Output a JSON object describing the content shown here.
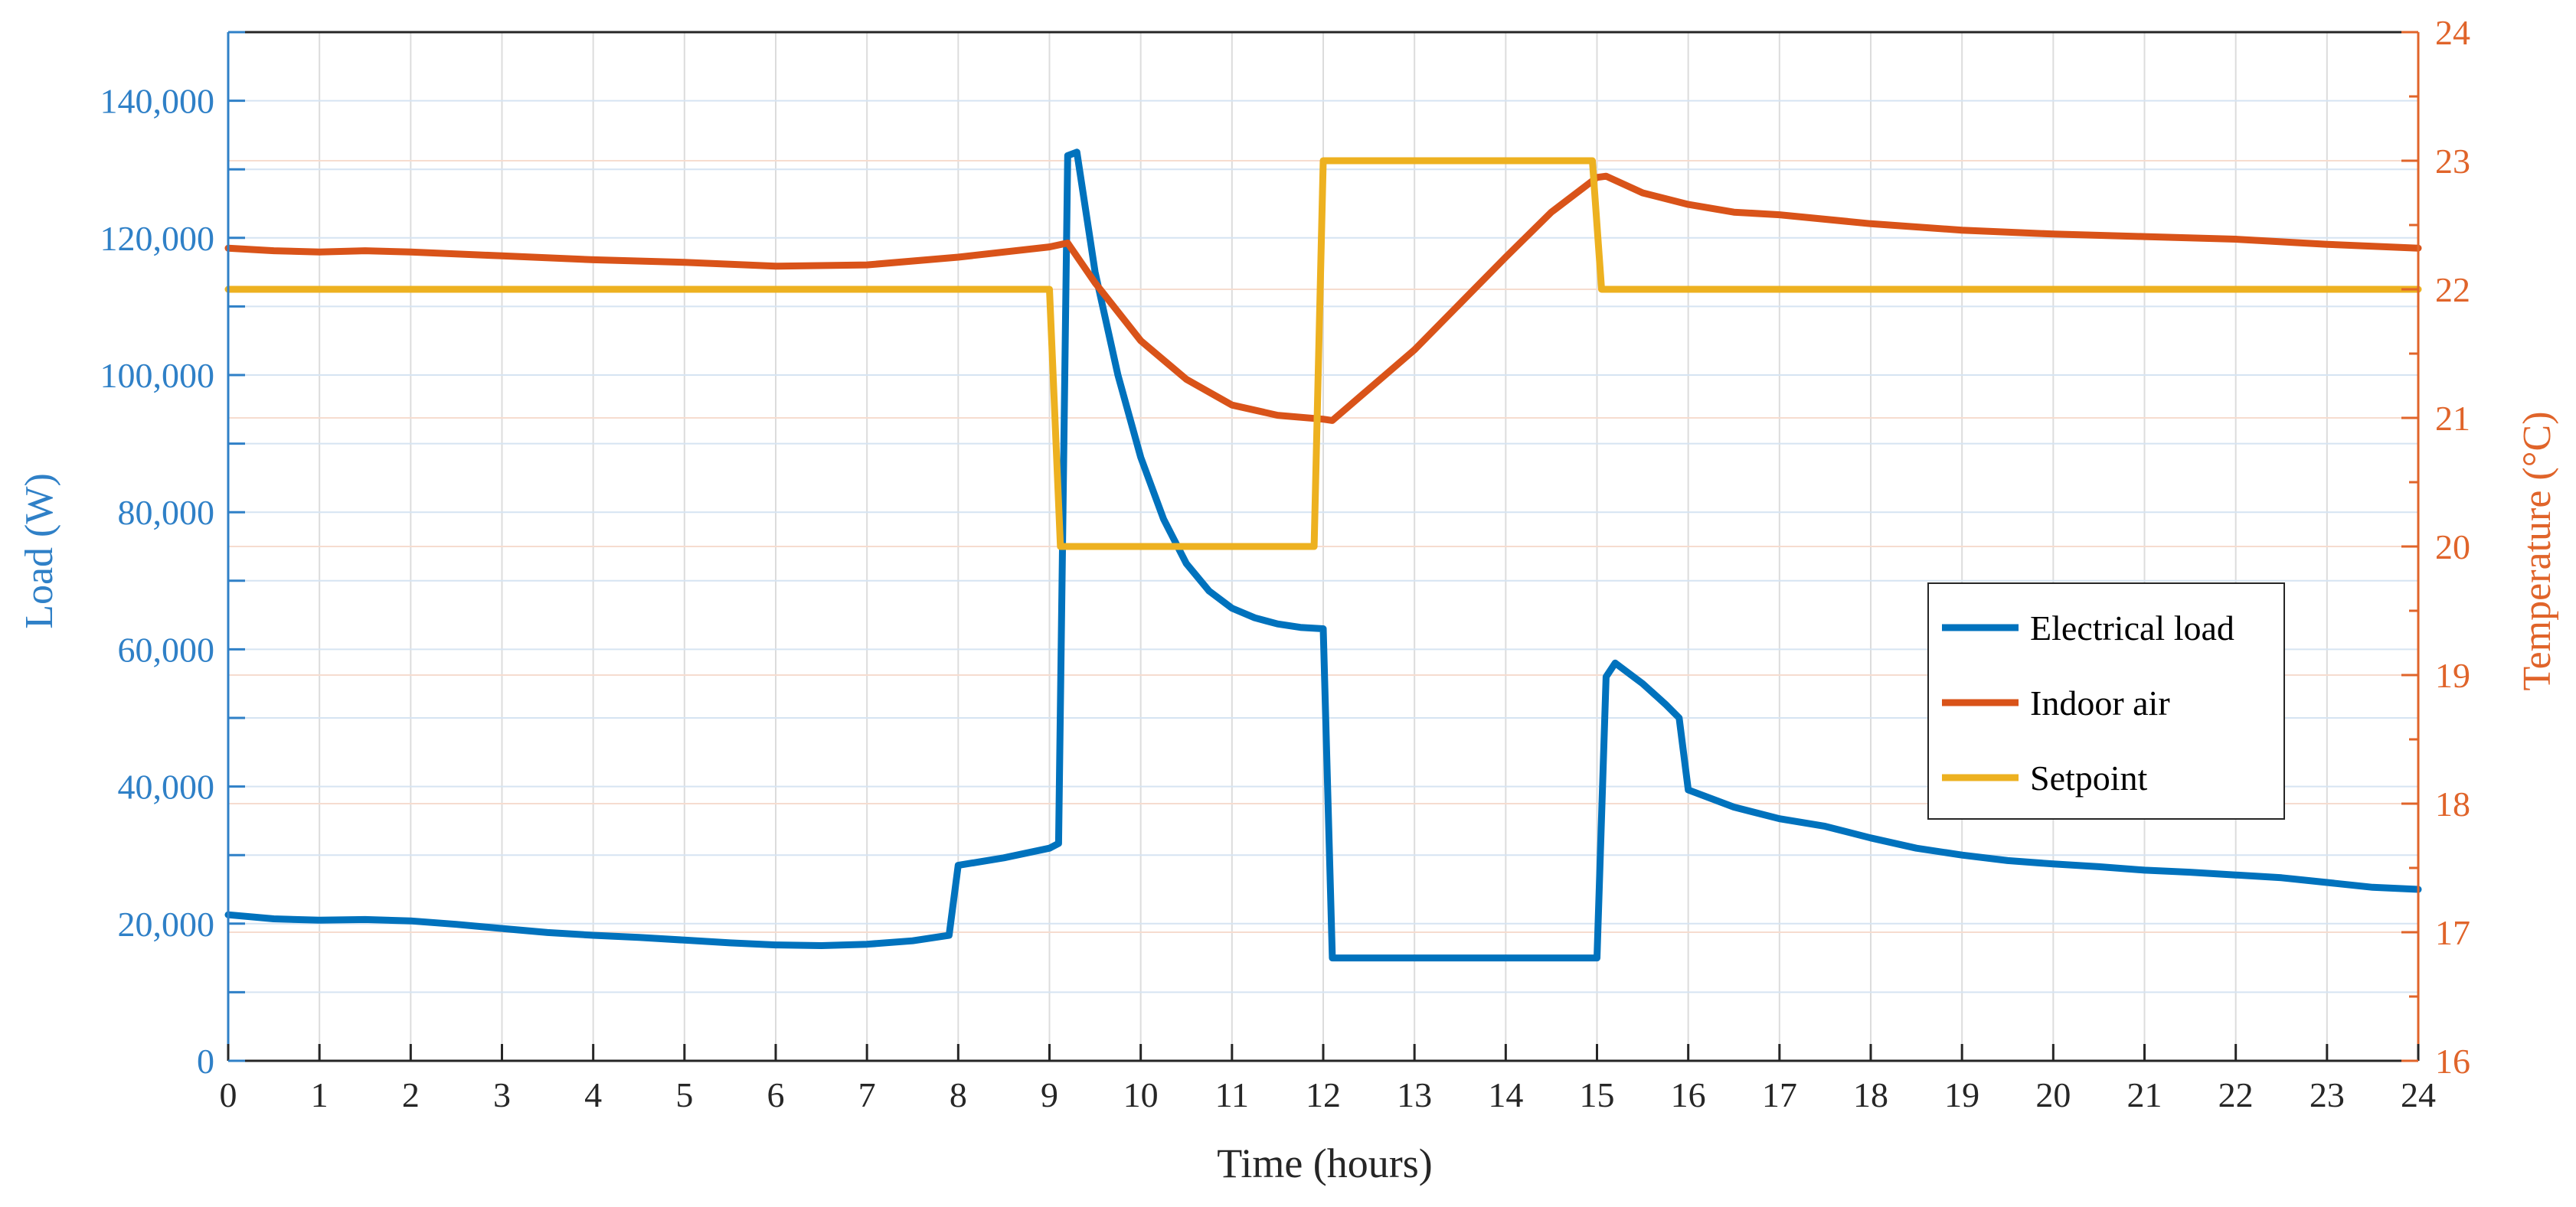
{
  "chart_data": {
    "type": "line",
    "xlabel": "Time (hours)",
    "ylabel_left": "Load (W)",
    "ylabel_right": "Temperature (°C)",
    "xlim": [
      0,
      24
    ],
    "ylim_left": [
      0,
      150000
    ],
    "ylim_right": [
      16,
      24
    ],
    "grid": true,
    "legend_position": "right-middle",
    "x_ticks": [
      "0",
      "1",
      "2",
      "3",
      "4",
      "5",
      "6",
      "7",
      "8",
      "9",
      "10",
      "11",
      "12",
      "13",
      "14",
      "15",
      "16",
      "17",
      "18",
      "19",
      "20",
      "21",
      "22",
      "23",
      "24"
    ],
    "y_left_ticks": [
      "0",
      "20,000",
      "40,000",
      "60,000",
      "80,000",
      "100,000",
      "120,000",
      "140,000"
    ],
    "y_right_ticks": [
      "16",
      "17",
      "18",
      "19",
      "20",
      "21",
      "22",
      "23",
      "24"
    ],
    "series": [
      {
        "name": "Electrical load",
        "axis": "left",
        "color": "#0072bd",
        "points": [
          [
            0,
            21300
          ],
          [
            0.5,
            20700
          ],
          [
            1,
            20500
          ],
          [
            1.5,
            20600
          ],
          [
            2,
            20400
          ],
          [
            2.5,
            19900
          ],
          [
            3,
            19300
          ],
          [
            3.5,
            18700
          ],
          [
            4,
            18300
          ],
          [
            4.5,
            18000
          ],
          [
            5,
            17600
          ],
          [
            5.5,
            17200
          ],
          [
            6,
            16900
          ],
          [
            6.5,
            16800
          ],
          [
            7,
            17000
          ],
          [
            7.5,
            17500
          ],
          [
            7.9,
            18300
          ],
          [
            8,
            28500
          ],
          [
            8.5,
            29600
          ],
          [
            9,
            31000
          ],
          [
            9.1,
            31700
          ],
          [
            9.2,
            132000
          ],
          [
            9.3,
            132500
          ],
          [
            9.5,
            115000
          ],
          [
            9.75,
            100000
          ],
          [
            10,
            88000
          ],
          [
            10.25,
            79000
          ],
          [
            10.5,
            72500
          ],
          [
            10.75,
            68500
          ],
          [
            11,
            66000
          ],
          [
            11.25,
            64600
          ],
          [
            11.5,
            63700
          ],
          [
            11.75,
            63200
          ],
          [
            12,
            63000
          ],
          [
            12.1,
            15000
          ],
          [
            13,
            15000
          ],
          [
            14,
            15000
          ],
          [
            14.9,
            15000
          ],
          [
            15,
            15000
          ],
          [
            15.1,
            56000
          ],
          [
            15.2,
            58000
          ],
          [
            15.5,
            55000
          ],
          [
            15.75,
            52000
          ],
          [
            15.9,
            50000
          ],
          [
            16,
            39500
          ],
          [
            16.5,
            37000
          ],
          [
            17,
            35300
          ],
          [
            17.5,
            34200
          ],
          [
            18,
            32500
          ],
          [
            18.5,
            31000
          ],
          [
            19,
            30000
          ],
          [
            19.5,
            29200
          ],
          [
            20,
            28700
          ],
          [
            20.5,
            28300
          ],
          [
            21,
            27800
          ],
          [
            21.5,
            27500
          ],
          [
            22,
            27100
          ],
          [
            22.5,
            26700
          ],
          [
            23,
            26000
          ],
          [
            23.5,
            25300
          ],
          [
            24,
            25000
          ]
        ]
      },
      {
        "name": "Indoor air",
        "axis": "right",
        "color": "#d95319",
        "points": [
          [
            0,
            22.32
          ],
          [
            0.5,
            22.3
          ],
          [
            1,
            22.29
          ],
          [
            1.5,
            22.3
          ],
          [
            2,
            22.29
          ],
          [
            3,
            22.26
          ],
          [
            4,
            22.23
          ],
          [
            5,
            22.21
          ],
          [
            6,
            22.18
          ],
          [
            7,
            22.19
          ],
          [
            8,
            22.25
          ],
          [
            9,
            22.33
          ],
          [
            9.2,
            22.36
          ],
          [
            9.5,
            22.05
          ],
          [
            10,
            21.6
          ],
          [
            10.5,
            21.3
          ],
          [
            11,
            21.1
          ],
          [
            11.5,
            21.02
          ],
          [
            12,
            20.99
          ],
          [
            12.1,
            20.98
          ],
          [
            13,
            21.53
          ],
          [
            14,
            22.25
          ],
          [
            14.5,
            22.6
          ],
          [
            15,
            22.87
          ],
          [
            15.1,
            22.88
          ],
          [
            15.5,
            22.75
          ],
          [
            16,
            22.66
          ],
          [
            16.5,
            22.6
          ],
          [
            17,
            22.58
          ],
          [
            18,
            22.51
          ],
          [
            19,
            22.46
          ],
          [
            20,
            22.43
          ],
          [
            21,
            22.41
          ],
          [
            22,
            22.39
          ],
          [
            23,
            22.35
          ],
          [
            24,
            22.32
          ]
        ]
      },
      {
        "name": "Setpoint",
        "axis": "right",
        "color": "#edb120",
        "points": [
          [
            0,
            22
          ],
          [
            9,
            22
          ],
          [
            9.12,
            20
          ],
          [
            11.9,
            20
          ],
          [
            12,
            23
          ],
          [
            14.95,
            23
          ],
          [
            15.05,
            22
          ],
          [
            24,
            22
          ]
        ]
      }
    ]
  }
}
